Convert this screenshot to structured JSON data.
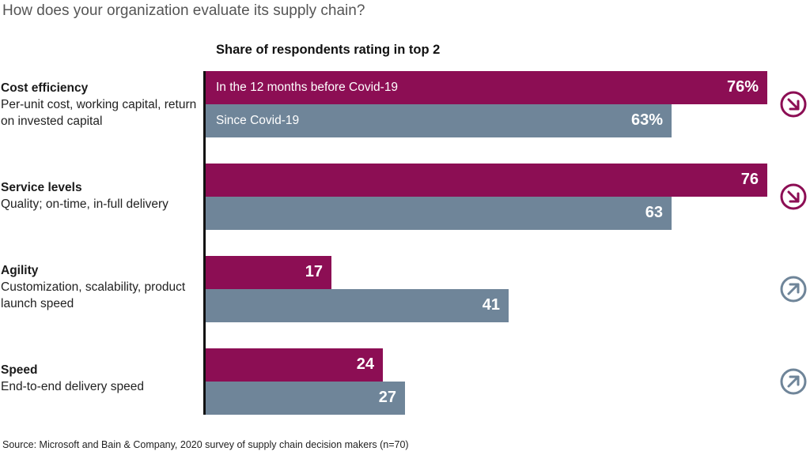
{
  "header": {
    "question": "How does your organization evaluate its supply chain?",
    "subtitle": "Share of respondents rating in top 2"
  },
  "colors": {
    "before": "#8c0e54",
    "since": "#6f8599"
  },
  "footer": {
    "source": "Source: Microsoft and Bain & Company, 2020 survey of supply chain decision makers (n=70)"
  },
  "chart_data": {
    "type": "bar",
    "orientation": "horizontal",
    "title": "Share of respondents rating in top 2",
    "categories": [
      "Cost efficiency",
      "Service levels",
      "Agility",
      "Speed"
    ],
    "category_descriptions": [
      "Per-unit cost, working capital, return on invested capital",
      "Quality; on-time, in-full delivery",
      "Customization, scalability, product launch speed",
      "End-to-end delivery speed"
    ],
    "series": [
      {
        "name": "In the 12 months before Covid-19",
        "values": [
          76,
          76,
          17,
          24
        ],
        "color": "#8c0e54"
      },
      {
        "name": "Since Covid-19",
        "values": [
          63,
          63,
          41,
          27
        ],
        "color": "#6f8599"
      }
    ],
    "value_labels": {
      "before": [
        "76%",
        "76",
        "17",
        "24"
      ],
      "since": [
        "63%",
        "63",
        "41",
        "27"
      ]
    },
    "trend": [
      "down",
      "down",
      "up",
      "up"
    ],
    "trend_icons": [
      "arrow-down-right-icon",
      "arrow-down-right-icon",
      "arrow-up-right-icon",
      "arrow-up-right-icon"
    ],
    "xlim": [
      0,
      76
    ],
    "legend": "inline-in-first-bars",
    "grid": false
  }
}
